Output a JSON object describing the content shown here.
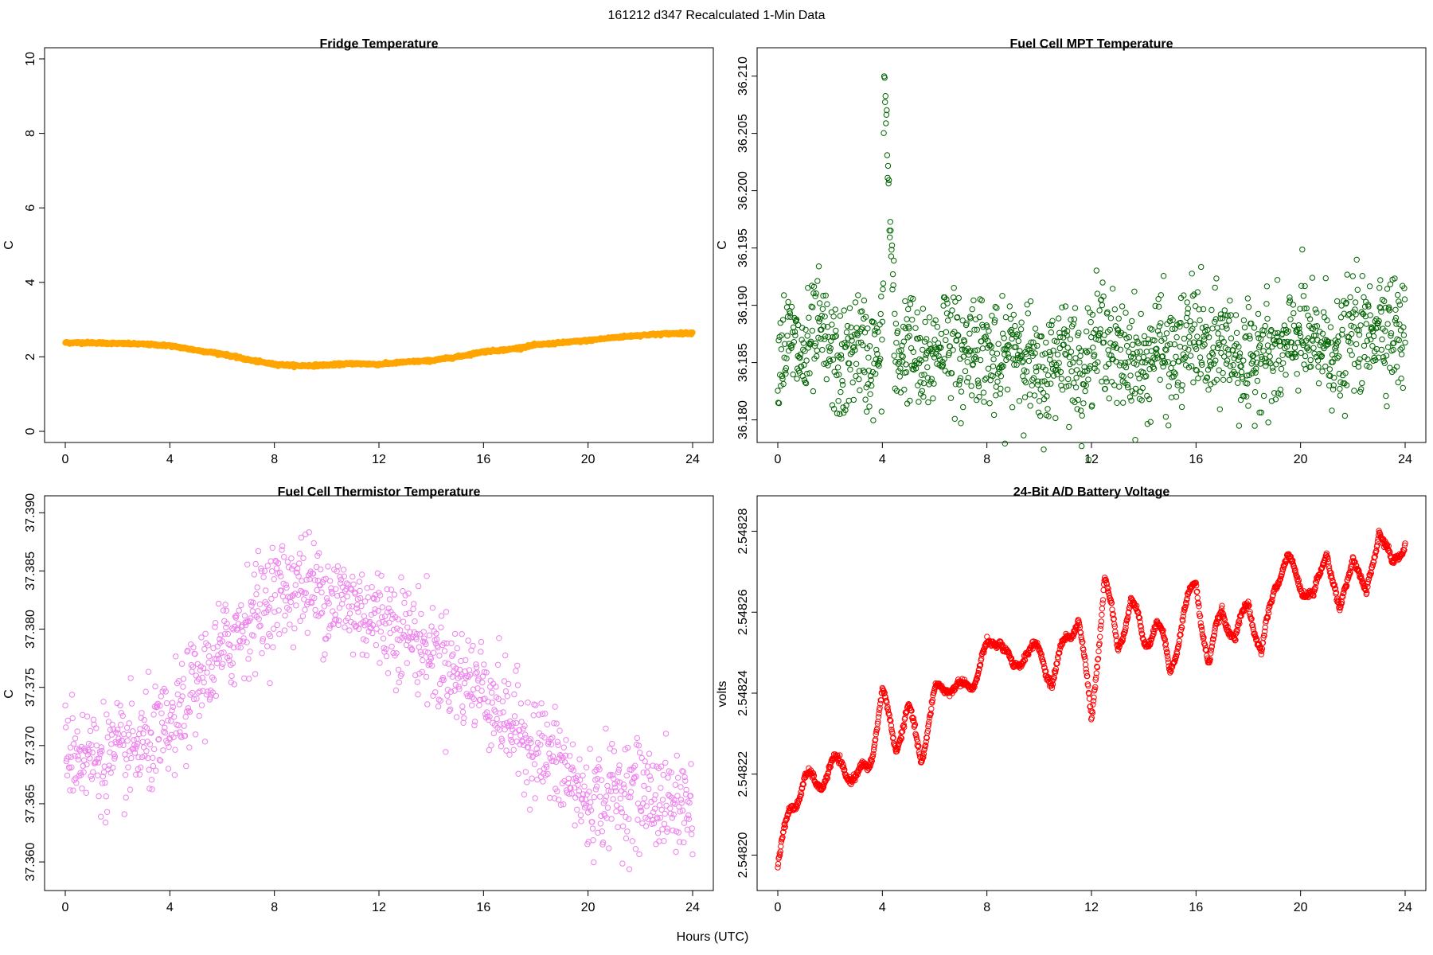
{
  "figure": {
    "suptitle": "161212   d347   Recalculated 1-Min Data",
    "xlabel": "Hours (UTC)"
  },
  "chart_data": [
    {
      "id": "fridge",
      "type": "scatter",
      "title": "Fridge Temperature",
      "ylabel": "C",
      "xlim": [
        0,
        24
      ],
      "ylim": [
        0,
        10
      ],
      "xticks": [
        "0",
        "4",
        "8",
        "12",
        "16",
        "20",
        "24"
      ],
      "yticks": [
        "0",
        "2",
        "4",
        "6",
        "8",
        "10"
      ],
      "color": "#ffa500",
      "marker": "filled",
      "x": [
        0,
        1,
        2,
        3,
        4,
        5,
        6,
        7,
        8,
        9,
        10,
        11,
        12,
        13,
        14,
        15,
        16,
        17,
        18,
        19,
        20,
        21,
        22,
        23,
        24
      ],
      "y": [
        2.38,
        2.38,
        2.36,
        2.34,
        2.3,
        2.18,
        2.08,
        1.92,
        1.8,
        1.76,
        1.78,
        1.82,
        1.8,
        1.86,
        1.9,
        2.0,
        2.14,
        2.2,
        2.32,
        2.38,
        2.44,
        2.52,
        2.58,
        2.62,
        2.64
      ]
    },
    {
      "id": "mpt",
      "type": "scatter",
      "title": "Fuel Cell MPT Temperature",
      "ylabel": "C",
      "xlim": [
        0,
        24
      ],
      "ylim": [
        36.179,
        36.2115
      ],
      "xticks": [
        "0",
        "4",
        "8",
        "12",
        "16",
        "20",
        "24"
      ],
      "yticks": [
        "36.180",
        "36.185",
        "36.190",
        "36.195",
        "36.200",
        "36.205",
        "36.210"
      ],
      "color": "#006400",
      "marker": "open",
      "x": [
        0,
        0.5,
        1,
        1.5,
        2,
        2.5,
        3,
        3.5,
        4,
        4.08,
        4.5,
        5,
        5.5,
        6,
        6.5,
        7,
        7.5,
        8,
        8.5,
        9,
        9.5,
        10,
        10.5,
        11,
        11.5,
        12,
        12.5,
        13,
        13.5,
        14,
        14.5,
        15,
        15.5,
        16,
        16.5,
        17,
        17.5,
        18,
        18.5,
        19,
        19.5,
        20,
        20.5,
        21,
        21.5,
        22,
        22.5,
        23,
        23.5,
        24
      ],
      "y": [
        36.186,
        36.187,
        36.185,
        36.188,
        36.186,
        36.184,
        36.187,
        36.185,
        36.186,
        36.2098,
        36.185,
        36.187,
        36.184,
        36.186,
        36.188,
        36.185,
        36.187,
        36.186,
        36.184,
        36.187,
        36.186,
        36.183,
        36.185,
        36.187,
        36.184,
        36.186,
        36.188,
        36.185,
        36.186,
        36.184,
        36.187,
        36.185,
        36.186,
        36.188,
        36.185,
        36.187,
        36.186,
        36.184,
        36.187,
        36.185,
        36.186,
        36.188,
        36.186,
        36.187,
        36.185,
        36.188,
        36.187,
        36.189,
        36.188,
        36.187
      ]
    },
    {
      "id": "thermistor",
      "type": "scatter",
      "title": "Fuel Cell Thermistor Temperature",
      "ylabel": "C",
      "xlim": [
        0,
        24
      ],
      "ylim": [
        37.3585,
        37.3905
      ],
      "xticks": [
        "0",
        "4",
        "8",
        "12",
        "16",
        "20",
        "24"
      ],
      "yticks": [
        "37.360",
        "37.365",
        "37.370",
        "37.375",
        "37.380",
        "37.385",
        "37.390"
      ],
      "color": "#ee82ee",
      "marker": "open",
      "x": [
        0,
        1,
        2,
        3,
        4,
        5,
        6,
        7,
        8,
        9,
        10,
        11,
        12,
        13,
        14,
        15,
        16,
        17,
        18,
        19,
        20,
        21,
        22,
        23,
        24
      ],
      "y": [
        37.37,
        37.369,
        37.369,
        37.37,
        37.371,
        37.375,
        37.378,
        37.381,
        37.383,
        37.384,
        37.383,
        37.382,
        37.381,
        37.38,
        37.378,
        37.376,
        37.375,
        37.372,
        37.37,
        37.368,
        37.365,
        37.366,
        37.366,
        37.365,
        37.365
      ]
    },
    {
      "id": "battery",
      "type": "scatter",
      "title": "24-Bit A/D Battery Voltage",
      "ylabel": "volts",
      "xlim": [
        0,
        24
      ],
      "ylim": [
        2.548194,
        2.548286
      ],
      "xticks": [
        "0",
        "4",
        "8",
        "12",
        "16",
        "20",
        "24"
      ],
      "yticks": [
        "2.54820",
        "2.54822",
        "2.54824",
        "2.54826",
        "2.54828"
      ],
      "color": "#ff0000",
      "marker": "open",
      "x": [
        0,
        0.5,
        1,
        1.5,
        2,
        2.5,
        3,
        3.5,
        4,
        4.5,
        5,
        5.5,
        6,
        6.5,
        7,
        7.5,
        8,
        8.5,
        9,
        9.5,
        10,
        10.5,
        11,
        11.5,
        12,
        12.5,
        13,
        13.5,
        14,
        14.5,
        15,
        15.5,
        16,
        16.5,
        17,
        17.5,
        18,
        18.5,
        19,
        19.5,
        20,
        20.5,
        21,
        21.5,
        22,
        22.5,
        23,
        23.5,
        24
      ],
      "y": [
        2.548197,
        2.548212,
        2.548218,
        2.548218,
        2.548221,
        2.548223,
        2.548218,
        2.548223,
        2.548239,
        2.548228,
        2.548235,
        2.548225,
        2.548239,
        2.548243,
        2.54824,
        2.548244,
        2.54825,
        2.548255,
        2.548244,
        2.548252,
        2.548249,
        2.548244,
        2.548252,
        2.54826,
        2.548232,
        2.54827,
        2.54825,
        2.548264,
        2.548252,
        2.548258,
        2.548246,
        2.548258,
        2.548268,
        2.548246,
        2.548262,
        2.548252,
        2.548264,
        2.548248,
        2.548268,
        2.548272,
        2.548268,
        2.548262,
        2.548277,
        2.548258,
        2.548276,
        2.548262,
        2.548282,
        2.54827,
        2.548279
      ]
    }
  ]
}
